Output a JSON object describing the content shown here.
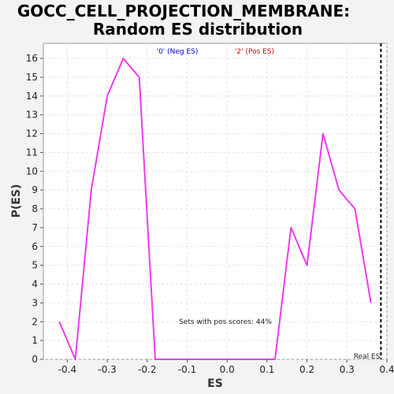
{
  "chart_data": {
    "type": "line",
    "title": [
      "GOCC_CELL_PROJECTION_MEMBRANE:",
      "Random ES distribution"
    ],
    "xlabel": "ES",
    "ylabel": "P(ES)",
    "xlim": [
      -0.46,
      0.4
    ],
    "ylim": [
      0,
      16.8
    ],
    "xticks": [
      -0.4,
      -0.3,
      -0.2,
      -0.1,
      0.0,
      0.1,
      0.2,
      0.3,
      0.4
    ],
    "xtick_labels": [
      "-0.4",
      "-0.3",
      "-0.2",
      "-0.1",
      "0.0",
      "0.1",
      "0.2",
      "0.3",
      "0.4"
    ],
    "yticks": [
      0,
      1,
      2,
      3,
      4,
      5,
      6,
      7,
      8,
      9,
      10,
      11,
      12,
      13,
      14,
      15,
      16
    ],
    "ytick_labels": [
      "0",
      "1",
      "2",
      "3",
      "4",
      "5",
      "6",
      "7",
      "8",
      "9",
      "10",
      "11",
      "12",
      "13",
      "14",
      "15",
      "16"
    ],
    "grid": true,
    "legend": [
      {
        "label": "'0' (Neg ES)",
        "color": "#0000cc"
      },
      {
        "label": "'2' (Pos ES)",
        "color": "#cc0000"
      }
    ],
    "series": [
      {
        "color": "#ee3bee",
        "x": [
          -0.42,
          -0.38,
          -0.34,
          -0.3,
          -0.26,
          -0.22,
          -0.18,
          -0.14,
          -0.1,
          -0.06,
          -0.02,
          0.02,
          0.06,
          0.1,
          0.12,
          0.16,
          0.2,
          0.24,
          0.28,
          0.32,
          0.36
        ],
        "y": [
          2,
          0,
          9,
          14,
          16,
          15,
          0,
          0,
          0,
          0,
          0,
          0,
          0,
          0,
          0,
          7,
          5,
          12,
          9,
          8,
          3
        ]
      }
    ],
    "real_es": {
      "x": 0.385,
      "label": "Real ES",
      "style": "dashed",
      "color": "#000000"
    },
    "annotation": "Sets with pos scores: 44%"
  }
}
